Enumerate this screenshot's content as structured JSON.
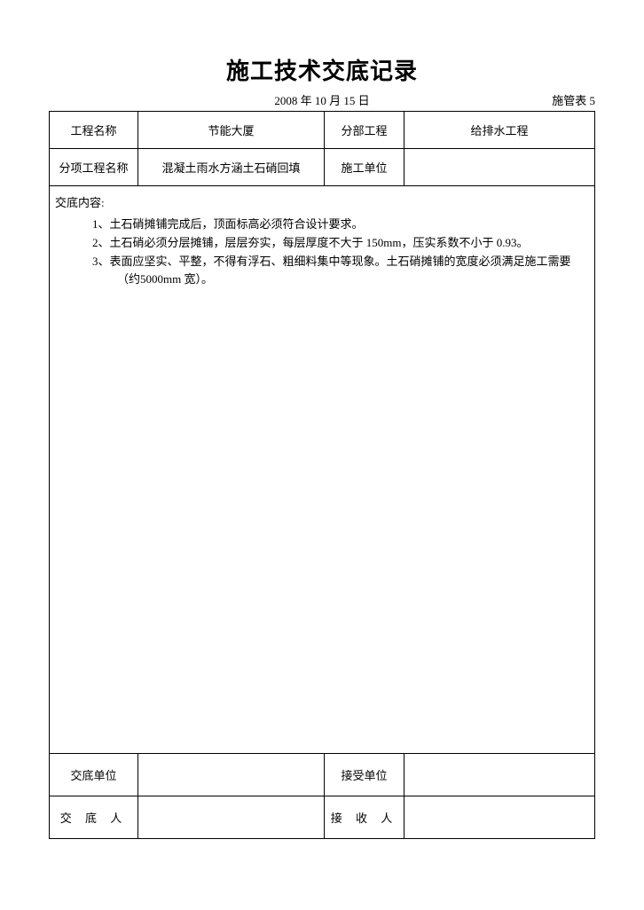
{
  "title": "施工技术交底记录",
  "date": "2008 年 10 月 15 日",
  "form_id": "施管表 5",
  "header": {
    "project_name_label": "工程名称",
    "project_name": "节能大厦",
    "section_label": "分部工程",
    "section": "给排水工程",
    "subitem_label": "分项工程名称",
    "subitem": "混凝土雨水方涵土石硝回填",
    "unit_label": "施工单位",
    "unit": ""
  },
  "content": {
    "label": "交底内容:",
    "items": [
      "1、土石硝摊铺完成后，顶面标高必须符合设计要求。",
      "2、土石硝必须分层摊铺，层层夯实，每层厚度不大于 150mm，压实系数不小于 0.93。",
      "3、表面应坚实、平整，不得有浮石、粗细料集中等现象。土石硝摊铺的宽度必须满足施工需要（约5000mm 宽）。"
    ]
  },
  "footer": {
    "deliver_unit_label": "交底单位",
    "deliver_unit": "",
    "receive_unit_label": "接受单位",
    "receive_unit": "",
    "deliver_person_label": "交 底 人",
    "deliver_person": "",
    "receive_person_label": "接 收 人",
    "receive_person": ""
  },
  "style": {
    "title_fontsize": 26,
    "body_fontsize": 13,
    "border_color": "#000000",
    "background_color": "#ffffff",
    "text_color": "#000000"
  }
}
